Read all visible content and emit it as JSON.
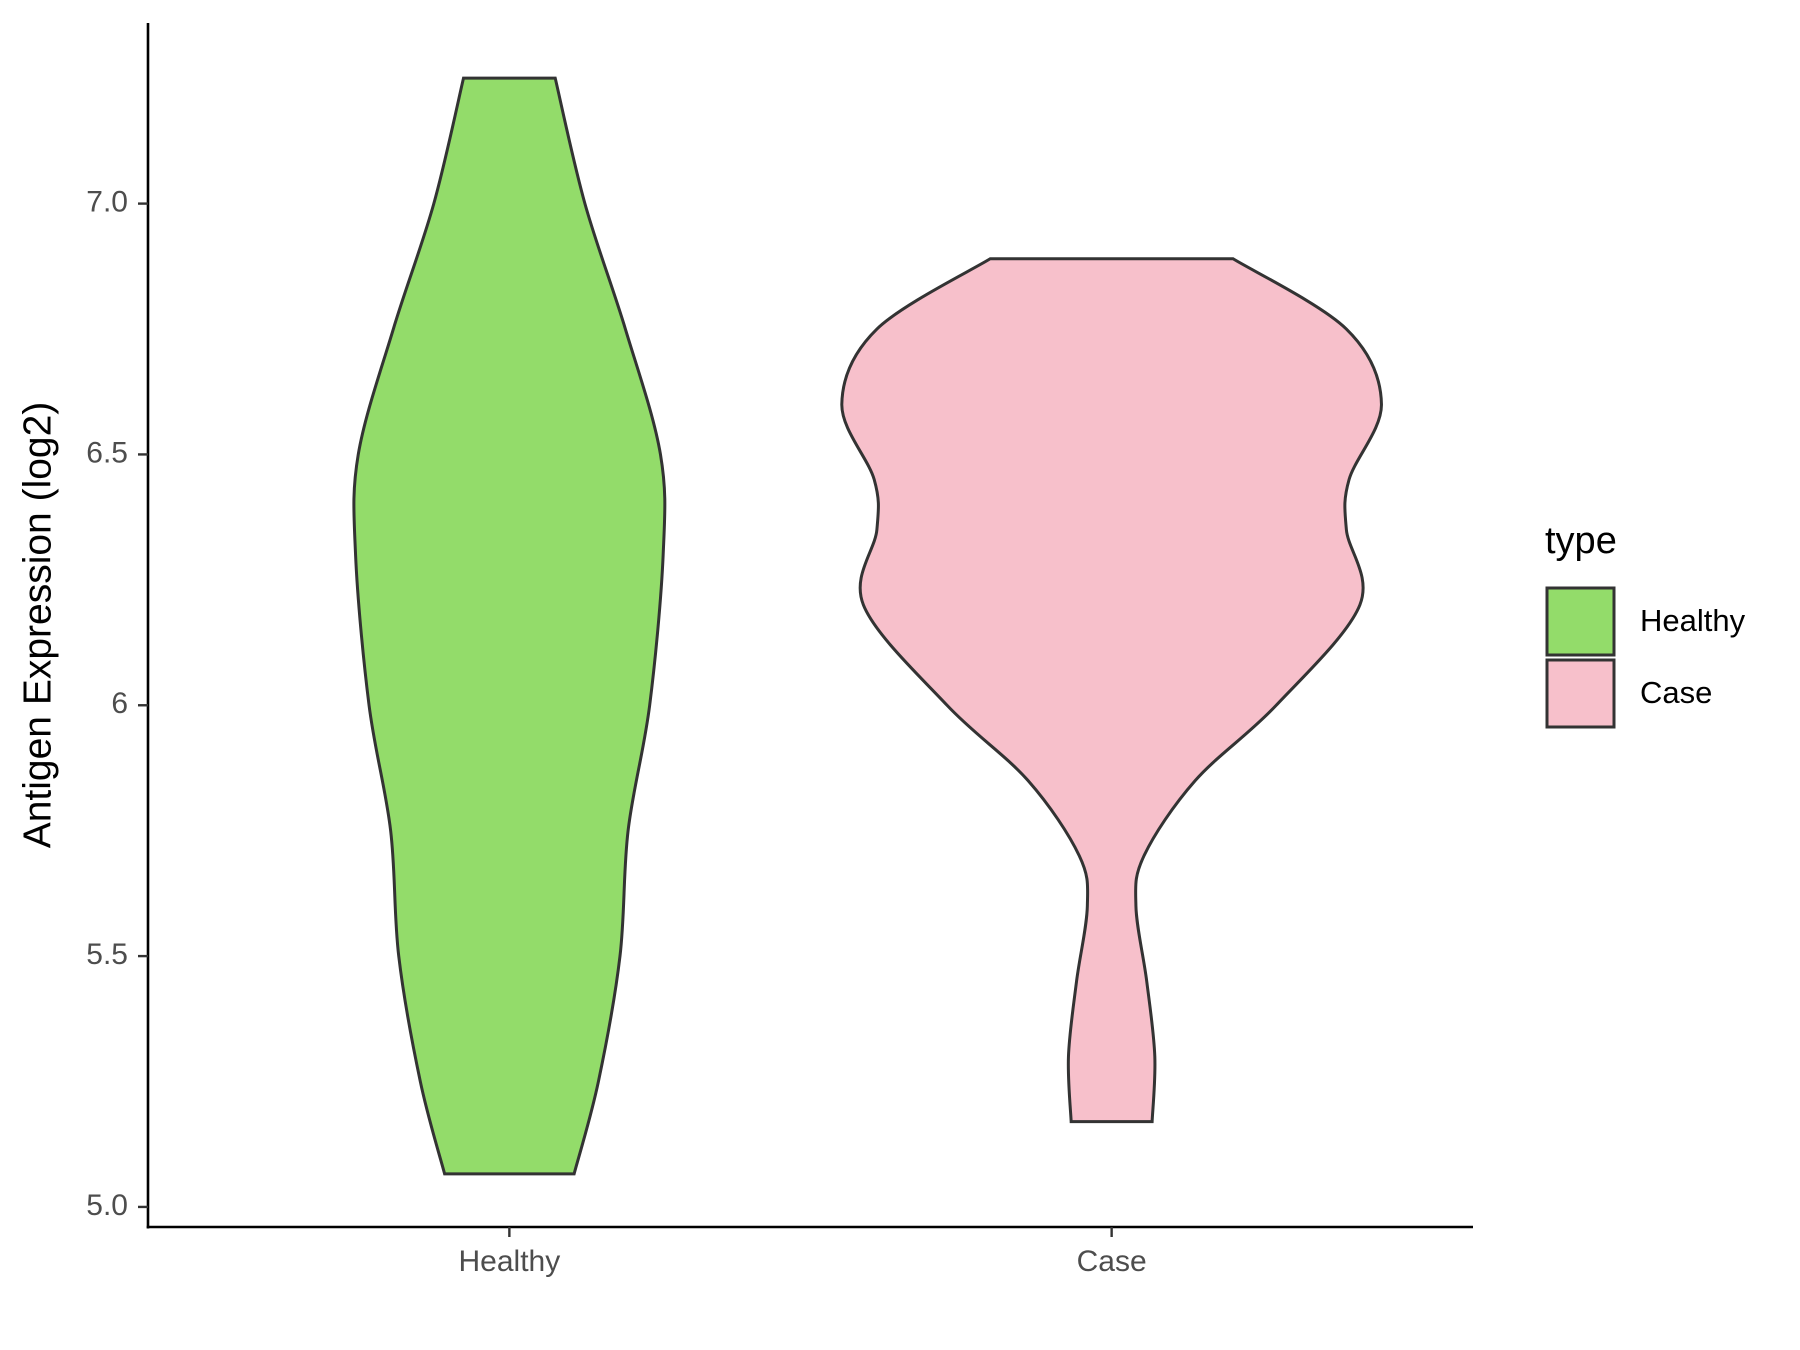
{
  "chart_data": {
    "type": "violin",
    "ylabel": "Antigen Expression (log2)",
    "categories": [
      "Healthy",
      "Case"
    ],
    "legend_title": "type",
    "legend_position": "right",
    "ylim": [
      4.96,
      7.36
    ],
    "yticks": [
      {
        "value": 5,
        "label": "5.0"
      },
      5.5,
      6.0,
      6.5,
      {
        "value": 7,
        "label": "7.0"
      }
    ],
    "series": [
      {
        "name": "Healthy",
        "color": "#93dc6a",
        "values": [
          5.066,
          5.25,
          5.5,
          5.75,
          6.0,
          6.3,
          6.5,
          6.75,
          7.0,
          7.25
        ],
        "widths": [
          0.24,
          0.33,
          0.41,
          0.44,
          0.52,
          0.57,
          0.56,
          0.43,
          0.28,
          0.17
        ]
      },
      {
        "name": "Case",
        "color": "#f7c0cb",
        "values": [
          5.17,
          5.3,
          5.45,
          5.6,
          5.7,
          5.85,
          6.0,
          6.2,
          6.35,
          6.45,
          6.6,
          6.75,
          6.89
        ],
        "widths": [
          0.15,
          0.16,
          0.13,
          0.09,
          0.12,
          0.31,
          0.61,
          0.92,
          0.87,
          0.88,
          1.0,
          0.87,
          0.45
        ]
      }
    ]
  }
}
